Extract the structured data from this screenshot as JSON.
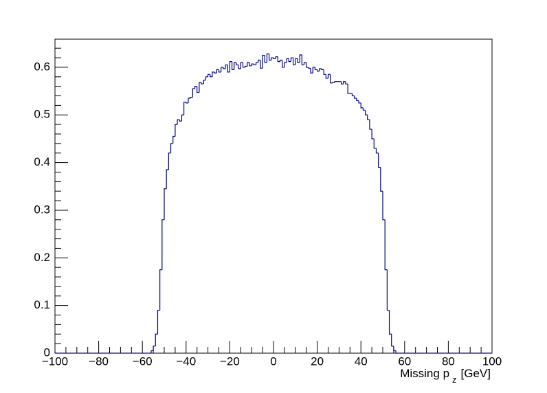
{
  "chart_data": {
    "type": "histogram",
    "x_label": "Missing p",
    "x_label_subscript": "z",
    "x_label_unit": "[GeV]",
    "color": "#000080",
    "bins": [
      -100,
      -99,
      -98,
      -97,
      -96,
      -95,
      -94,
      -93,
      -92,
      -91,
      -90,
      -89,
      -88,
      -87,
      -86,
      -85,
      -84,
      -83,
      -82,
      -81,
      -80,
      -79,
      -78,
      -77,
      -76,
      -75,
      -74,
      -73,
      -72,
      -71,
      -70,
      -69,
      -68,
      -67,
      -66,
      -65,
      -64,
      -63,
      -62,
      -61,
      -60,
      -59,
      -58,
      -57,
      -56,
      -55,
      -54,
      -53,
      -52,
      -51,
      -50,
      -49,
      -48,
      -47,
      -46,
      -45,
      -44,
      -43,
      -42,
      -41,
      -40,
      -39,
      -38,
      -37,
      -36,
      -35,
      -34,
      -33,
      -32,
      -31,
      -30,
      -29,
      -28,
      -27,
      -26,
      -25,
      -24,
      -23,
      -22,
      -21,
      -20,
      -19,
      -18,
      -17,
      -16,
      -15,
      -14,
      -13,
      -12,
      -11,
      -10,
      -9,
      -8,
      -7,
      -6,
      -5,
      -4,
      -3,
      -2,
      -1,
      0,
      1,
      2,
      3,
      4,
      5,
      6,
      7,
      8,
      9,
      10,
      11,
      12,
      13,
      14,
      15,
      16,
      17,
      18,
      19,
      20,
      21,
      22,
      23,
      24,
      25,
      26,
      27,
      28,
      29,
      30,
      31,
      32,
      33,
      34,
      35,
      36,
      37,
      38,
      39,
      40,
      41,
      42,
      43,
      44,
      45,
      46,
      47,
      48,
      49,
      50,
      51,
      52,
      53,
      54,
      55,
      56,
      57,
      58,
      59,
      60,
      61,
      62,
      63,
      64,
      65,
      66,
      67,
      68,
      69,
      70,
      71,
      72,
      73,
      74,
      75,
      76,
      77,
      78,
      79,
      80,
      81,
      82,
      83,
      84,
      85,
      86,
      87,
      88,
      89,
      90,
      91,
      92,
      93,
      94,
      95,
      96,
      97,
      98,
      99,
      100
    ],
    "values": [
      0,
      0,
      0,
      0,
      0,
      0,
      0,
      0,
      0,
      0,
      0,
      0,
      0,
      0,
      0,
      0,
      0,
      0,
      0,
      0,
      0,
      0,
      0,
      0,
      0,
      0,
      0,
      0,
      0,
      0,
      0,
      0,
      0,
      0,
      0,
      0,
      0,
      0,
      0,
      0,
      0,
      0,
      0,
      0,
      0.005,
      0.015,
      0.04,
      0.09,
      0.175,
      0.28,
      0.345,
      0.385,
      0.42,
      0.44,
      0.455,
      0.48,
      0.49,
      0.487,
      0.5,
      0.527,
      0.525,
      0.535,
      0.537,
      0.555,
      0.56,
      0.547,
      0.568,
      0.565,
      0.573,
      0.58,
      0.585,
      0.58,
      0.59,
      0.588,
      0.595,
      0.59,
      0.6,
      0.597,
      0.605,
      0.59,
      0.612,
      0.595,
      0.61,
      0.605,
      0.597,
      0.61,
      0.6,
      0.602,
      0.61,
      0.603,
      0.607,
      0.605,
      0.61,
      0.615,
      0.598,
      0.625,
      0.61,
      0.628,
      0.615,
      0.62,
      0.618,
      0.622,
      0.612,
      0.615,
      0.6,
      0.61,
      0.618,
      0.612,
      0.62,
      0.605,
      0.618,
      0.61,
      0.626,
      0.605,
      0.61,
      0.6,
      0.598,
      0.588,
      0.6,
      0.595,
      0.592,
      0.597,
      0.595,
      0.585,
      0.577,
      0.585,
      0.567,
      0.568,
      0.57,
      0.57,
      0.57,
      0.565,
      0.57,
      0.565,
      0.545,
      0.545,
      0.54,
      0.535,
      0.53,
      0.525,
      0.515,
      0.51,
      0.5,
      0.49,
      0.47,
      0.45,
      0.43,
      0.42,
      0.39,
      0.34,
      0.28,
      0.175,
      0.09,
      0.04,
      0.015,
      0.005,
      0,
      0,
      0,
      0,
      0,
      0,
      0,
      0,
      0,
      0,
      0,
      0,
      0,
      0,
      0,
      0,
      0,
      0,
      0,
      0,
      0,
      0,
      0,
      0,
      0,
      0,
      0,
      0,
      0,
      0,
      0,
      0,
      0,
      0,
      0,
      0,
      0,
      0,
      0,
      0,
      0,
      0,
      0,
      0
    ],
    "xlim": [
      -100,
      100
    ],
    "xticks": [
      {
        "value": -100,
        "label": "−100"
      },
      {
        "value": -80,
        "label": "−80"
      },
      {
        "value": -60,
        "label": "−60"
      },
      {
        "value": -40,
        "label": "−40"
      },
      {
        "value": -20,
        "label": "−20"
      },
      0,
      20,
      40,
      60,
      80,
      100
    ],
    "ylim": [
      0,
      0.659
    ],
    "yticks": [
      0,
      0.1,
      0.2,
      0.3,
      0.4,
      0.5,
      0.6
    ]
  }
}
